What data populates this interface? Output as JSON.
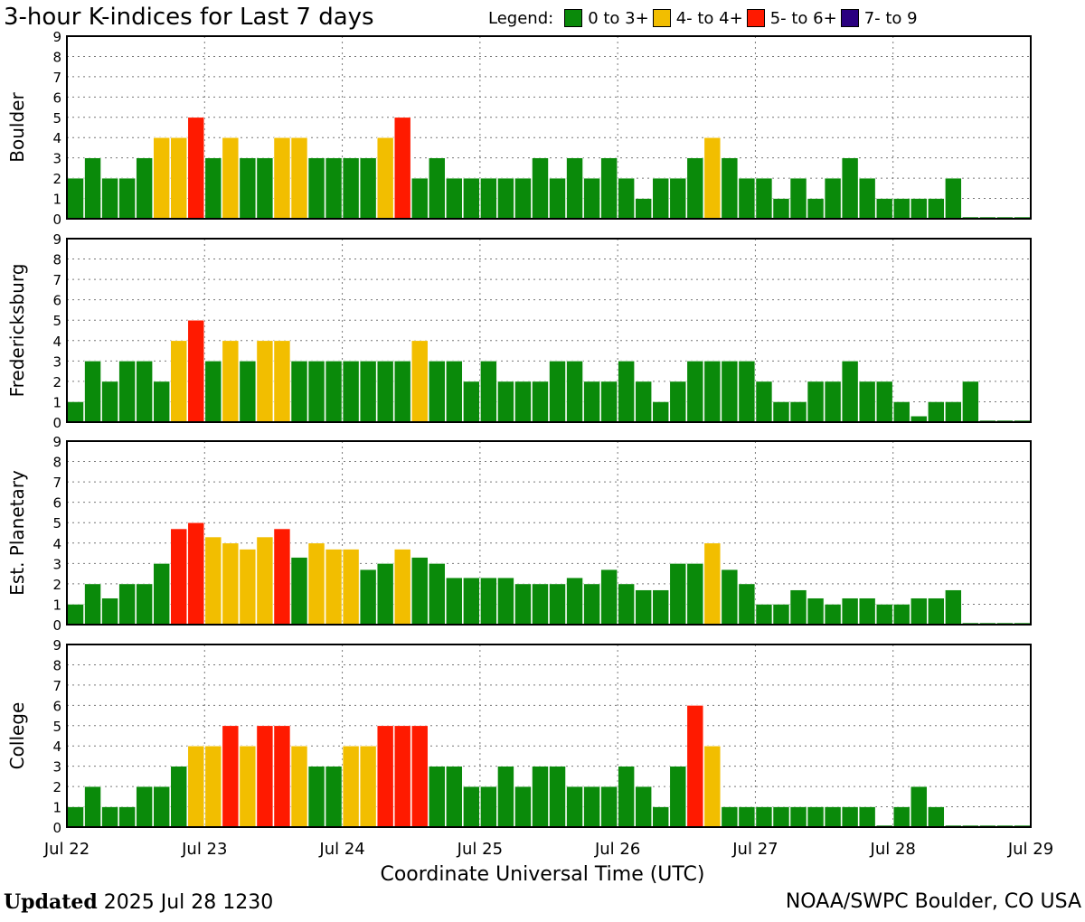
{
  "page": {
    "title": "3-hour K-indices for Last 7 days",
    "footer_updated_label": "Updated",
    "footer_updated_value": "2025 Jul 28 1230",
    "footer_source": "NOAA/SWPC Boulder, CO USA"
  },
  "legend": {
    "label": "Legend:",
    "items": [
      {
        "label": "0 to 3+",
        "color": "#0a8a0a"
      },
      {
        "label": "4- to 4+",
        "color": "#f2be00"
      },
      {
        "label": "5- to 6+",
        "color": "#ff1a00"
      },
      {
        "label": "7- to 9",
        "color": "#2a0080"
      }
    ]
  },
  "chart_data": {
    "type": "bar",
    "title": "3-hour K-indices for Last 7 days",
    "xlabel": "Coordinate Universal Time (UTC)",
    "x_ticks": [
      "Jul 22",
      "Jul 23",
      "Jul 24",
      "Jul 25",
      "Jul 26",
      "Jul 27",
      "Jul 28",
      "Jul 29"
    ],
    "ylim": [
      0,
      9
    ],
    "y_ticks": [
      0,
      1,
      2,
      3,
      4,
      5,
      6,
      7,
      8,
      9
    ],
    "interval_hours": 3,
    "grid": true,
    "legend_position": "top-right",
    "series": [
      {
        "name": "Boulder",
        "values": [
          2,
          3,
          2,
          2,
          3,
          4,
          4,
          5,
          3,
          4,
          3,
          3,
          4,
          4,
          3,
          3,
          3,
          3,
          4,
          5,
          2,
          3,
          2,
          2,
          2,
          2,
          2,
          3,
          2,
          3,
          2,
          3,
          2,
          1,
          2,
          2,
          3,
          4,
          3,
          2,
          2,
          1,
          2,
          1,
          2,
          3,
          2,
          1,
          1,
          1,
          1,
          2,
          0,
          0,
          0,
          0
        ]
      },
      {
        "name": "Fredericksburg",
        "values": [
          1,
          3,
          2,
          3,
          3,
          2,
          4,
          5,
          3,
          4,
          3,
          4,
          4,
          3,
          3,
          3,
          3,
          3,
          3,
          3,
          4,
          3,
          3,
          2,
          3,
          2,
          2,
          2,
          3,
          3,
          2,
          2,
          3,
          2,
          1,
          2,
          3,
          3,
          3,
          3,
          2,
          1,
          1,
          2,
          2,
          3,
          2,
          2,
          1,
          0.3,
          1,
          1,
          2,
          0,
          0,
          0
        ]
      },
      {
        "name": "Est. Planetary",
        "values": [
          1,
          2,
          1.3,
          2,
          2,
          3,
          4.7,
          5,
          4.3,
          4,
          3.7,
          4.3,
          4.7,
          3.3,
          4,
          3.7,
          3.7,
          2.7,
          3,
          3.7,
          3.3,
          3,
          2.3,
          2.3,
          2.3,
          2.3,
          2,
          2,
          2,
          2.3,
          2,
          2.7,
          2,
          1.7,
          1.7,
          3,
          3,
          4,
          2.7,
          2,
          1,
          1,
          1.7,
          1.3,
          1,
          1.3,
          1.3,
          1,
          1,
          1.3,
          1.3,
          1.7,
          0,
          0,
          0,
          0
        ]
      },
      {
        "name": "College",
        "values": [
          1,
          2,
          1,
          1,
          2,
          2,
          3,
          4,
          4,
          5,
          4,
          5,
          5,
          4,
          3,
          3,
          4,
          4,
          5,
          5,
          5,
          3,
          3,
          2,
          2,
          3,
          2,
          3,
          3,
          2,
          2,
          2,
          3,
          2,
          1,
          3,
          6,
          4,
          1,
          1,
          1,
          1,
          1,
          1,
          1,
          1,
          1,
          0,
          1,
          2,
          1,
          0,
          0,
          0,
          0,
          0
        ]
      }
    ]
  }
}
